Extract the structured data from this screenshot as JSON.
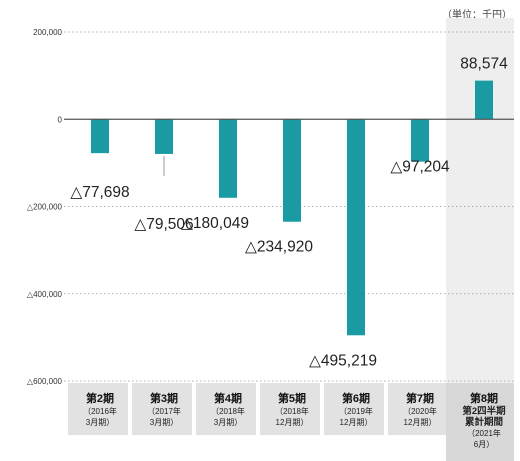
{
  "chart_data": {
    "type": "bar",
    "unit_label": "（単位：千円）",
    "categories": [
      {
        "period": "第2期",
        "sub": [
          "（2016年",
          "3月期）"
        ]
      },
      {
        "period": "第3期",
        "sub": [
          "（2017年",
          "3月期）"
        ]
      },
      {
        "period": "第4期",
        "sub": [
          "（2018年",
          "3月期）"
        ]
      },
      {
        "period": "第5期",
        "sub": [
          "（2018年",
          "12月期）"
        ]
      },
      {
        "period": "第6期",
        "sub": [
          "（2019年",
          "12月期）"
        ]
      },
      {
        "period": "第7期",
        "sub": [
          "（2020年",
          "12月期）"
        ]
      },
      {
        "period": "第8期",
        "sub": [
          "第2四半期",
          "累計期間",
          "（2021年",
          "6月）"
        ]
      }
    ],
    "values": [
      -77698,
      -79506,
      -180049,
      -234920,
      -495219,
      -97204,
      88574
    ],
    "value_labels": [
      "△77,698",
      "△79,506",
      "△180,049",
      "△234,920",
      "△495,219",
      "△97,204",
      "88,574"
    ],
    "yticks": [
      200000,
      0,
      -200000,
      -400000,
      -600000
    ],
    "ytick_labels": [
      "200,000",
      "0",
      "△200,000",
      "△400,000",
      "△600,000"
    ],
    "ylim": [
      -600000,
      200000
    ],
    "colors": {
      "bar": "#1a9ba4",
      "highlight_bg": "#eeeeee",
      "footer_bg": "#e2e2e2",
      "grid": "#555555"
    }
  }
}
